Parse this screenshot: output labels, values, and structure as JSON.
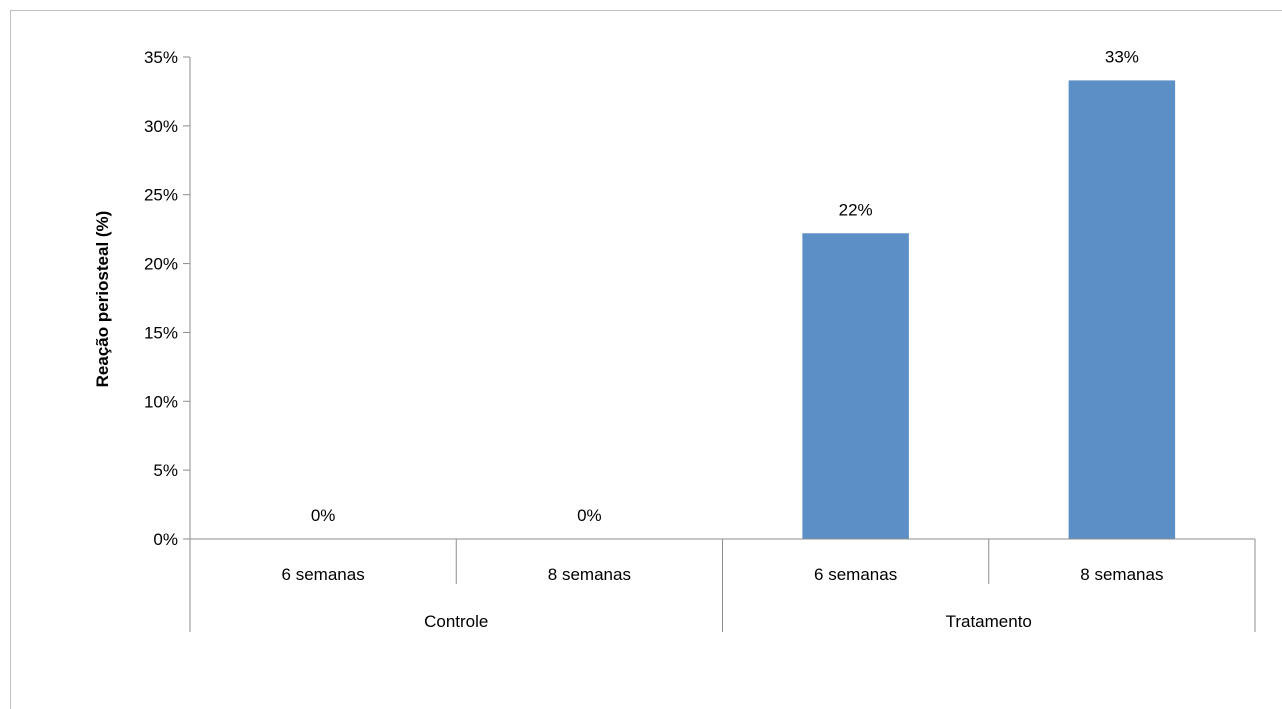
{
  "chart_data": {
    "type": "bar",
    "title": "",
    "xlabel": "",
    "ylabel": "Reação periosteal (%)",
    "ylim": [
      0,
      35
    ],
    "y_ticks": [
      "0%",
      "5%",
      "10%",
      "15%",
      "20%",
      "25%",
      "30%",
      "35%"
    ],
    "y_tick_values": [
      0,
      5,
      10,
      15,
      20,
      25,
      30,
      35
    ],
    "grid": false,
    "legend": "none",
    "bar_color": "#5b8fc6",
    "axis_color": "#8c8c8c",
    "groups": [
      {
        "label": "Controle",
        "categories": [
          "6 semanas",
          "8 semanas"
        ]
      },
      {
        "label": "Tratamento",
        "categories": [
          "6 semanas",
          "8 semanas"
        ]
      }
    ],
    "categories": [
      "6 semanas",
      "8 semanas",
      "6 semanas",
      "8 semanas"
    ],
    "values": [
      0,
      0,
      22.2,
      33.3
    ],
    "data_labels": [
      "0%",
      "0%",
      "22%",
      "33%"
    ]
  }
}
